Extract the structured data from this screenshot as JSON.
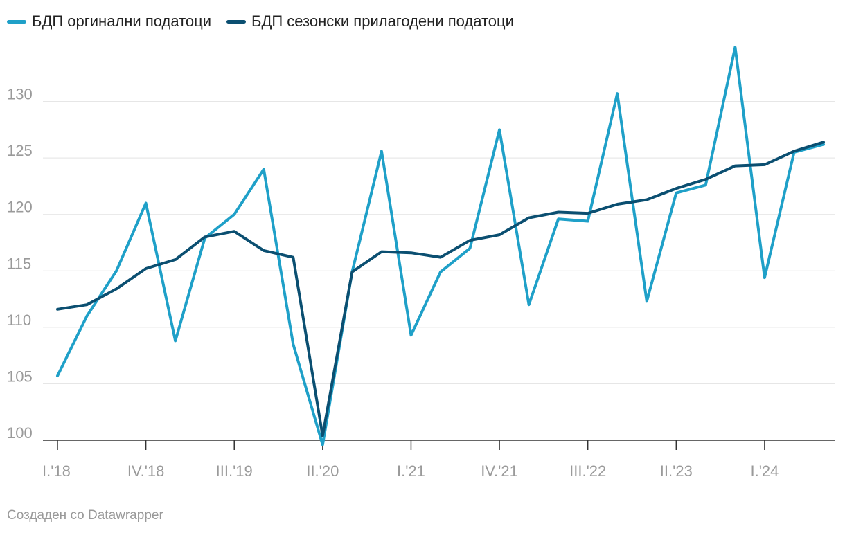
{
  "chart_data": {
    "type": "line",
    "title": "",
    "xlabel": "",
    "ylabel": "",
    "ylim": [
      100,
      135
    ],
    "yticks": [
      100,
      105,
      110,
      115,
      120,
      125,
      130
    ],
    "x": [
      "I.'18",
      "II.'18",
      "III.'18",
      "IV.'18",
      "I.'19",
      "II.'19",
      "III.'19",
      "IV.'19",
      "I.'20",
      "II.'20",
      "III.'20",
      "IV.'20",
      "I.'21",
      "II.'21",
      "III.'21",
      "IV.'21",
      "I.'22",
      "II.'22",
      "III.'22",
      "IV.'22",
      "I.'23",
      "II.'23",
      "III.'23",
      "IV.'23",
      "I.'24",
      "II.'24",
      "III.'24"
    ],
    "xtick_labels": [
      "I.'18",
      "IV.'18",
      "III.'19",
      "II.'20",
      "I.'21",
      "IV.'21",
      "III.'22",
      "II.'23",
      "I.'24"
    ],
    "series": [
      {
        "name": "БДП оргинални податоци",
        "color": "#1fa0c8",
        "values": [
          105.7,
          111.0,
          115.0,
          121.0,
          108.8,
          117.9,
          120.0,
          124.0,
          108.5,
          99.6,
          114.9,
          125.6,
          109.3,
          114.9,
          117.0,
          127.5,
          112.0,
          119.6,
          119.4,
          130.7,
          112.3,
          121.9,
          122.6,
          134.8,
          114.4,
          125.5,
          126.2
        ]
      },
      {
        "name": "БДП сезонски прилагодени податоци",
        "color": "#0b4f71",
        "values": [
          111.6,
          112.0,
          113.4,
          115.2,
          116.0,
          118.0,
          118.5,
          116.8,
          116.2,
          100.4,
          114.9,
          116.7,
          116.6,
          116.2,
          117.7,
          118.2,
          119.7,
          120.2,
          120.1,
          120.9,
          121.3,
          122.3,
          123.1,
          124.3,
          124.4,
          125.6,
          126.4
        ]
      }
    ]
  },
  "footer": {
    "credit": "Создаден со Datawrapper"
  }
}
